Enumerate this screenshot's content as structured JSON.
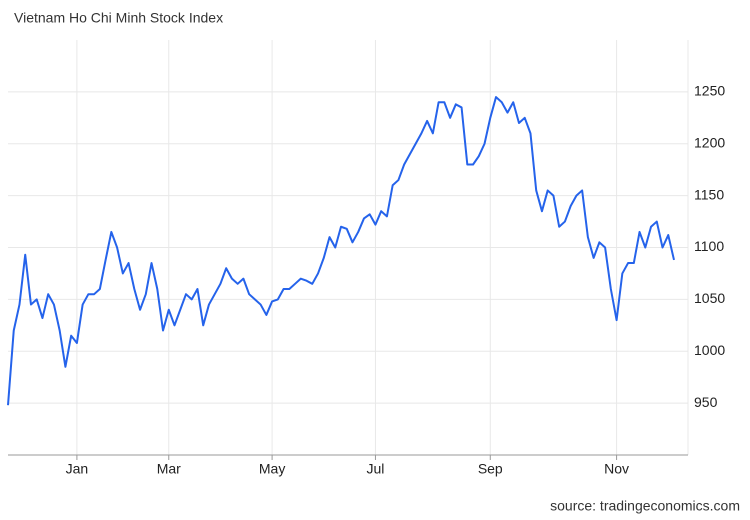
{
  "chart_data": {
    "type": "line",
    "title": "Vietnam Ho Chi Minh Stock Index",
    "source": "source: tradingeconomics.com",
    "categories": [
      null,
      null,
      null,
      null,
      null,
      null,
      null,
      null,
      null,
      null,
      null,
      null,
      "Jan",
      null,
      null,
      null,
      null,
      null,
      null,
      null,
      null,
      null,
      null,
      null,
      null,
      null,
      null,
      null,
      "Mar",
      null,
      null,
      null,
      null,
      null,
      null,
      null,
      null,
      null,
      null,
      null,
      null,
      null,
      null,
      null,
      null,
      null,
      "May",
      null,
      null,
      null,
      null,
      null,
      null,
      null,
      null,
      null,
      null,
      null,
      null,
      null,
      null,
      null,
      null,
      null,
      "Jul",
      null,
      null,
      null,
      null,
      null,
      null,
      null,
      null,
      null,
      null,
      null,
      null,
      null,
      null,
      null,
      null,
      null,
      null,
      null,
      "Sep",
      null,
      null,
      null,
      null,
      null,
      null,
      null,
      null,
      null,
      null,
      null,
      null,
      null,
      null,
      null,
      null,
      null,
      null,
      null,
      null,
      null,
      "Nov",
      null,
      null,
      null,
      null,
      null,
      null,
      null,
      null,
      null,
      null
    ],
    "series": [
      {
        "name": "Vietnam Ho Chi Minh Stock Index",
        "color": "#2563eb",
        "values": [
          948,
          1020,
          1045,
          1093,
          1045,
          1050,
          1032,
          1055,
          1045,
          1020,
          985,
          1015,
          1008,
          1045,
          1055,
          1055,
          1060,
          1088,
          1115,
          1100,
          1075,
          1085,
          1060,
          1040,
          1055,
          1085,
          1060,
          1020,
          1040,
          1025,
          1040,
          1055,
          1050,
          1060,
          1025,
          1045,
          1055,
          1065,
          1080,
          1070,
          1065,
          1070,
          1055,
          1050,
          1045,
          1035,
          1048,
          1050,
          1060,
          1060,
          1065,
          1070,
          1068,
          1065,
          1075,
          1090,
          1110,
          1100,
          1120,
          1118,
          1105,
          1115,
          1128,
          1132,
          1122,
          1135,
          1130,
          1160,
          1165,
          1180,
          1190,
          1200,
          1210,
          1222,
          1210,
          1240,
          1240,
          1225,
          1238,
          1235,
          1180,
          1180,
          1188,
          1200,
          1225,
          1245,
          1240,
          1230,
          1240,
          1220,
          1225,
          1210,
          1155,
          1135,
          1155,
          1150,
          1120,
          1125,
          1140,
          1150,
          1155,
          1110,
          1090,
          1105,
          1100,
          1060,
          1030,
          1075,
          1085,
          1085,
          1115,
          1100,
          1120,
          1125,
          1100,
          1112,
          1088
        ]
      }
    ],
    "ylim": [
      900,
      1300
    ],
    "yticks": [
      950,
      1000,
      1050,
      1100,
      1150,
      1200,
      1250
    ],
    "grid": true
  }
}
